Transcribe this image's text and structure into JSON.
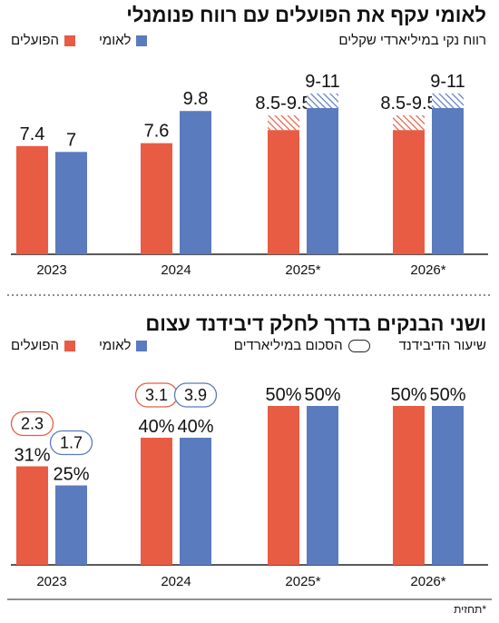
{
  "colors": {
    "hapoalim": "#e85c44",
    "leumi": "#5b7bbf",
    "baseline": "#222222",
    "divider": "#666666"
  },
  "chart_data": [
    {
      "type": "bar",
      "title": "לאומי עקף את הפועלים עם רווח פנומנלי",
      "subtitle": "רווח נקי במיליארדי שקלים",
      "categories": [
        "2023",
        "2024",
        "2025*",
        "2026*"
      ],
      "series": [
        {
          "name": "הפועלים",
          "values": [
            7.4,
            7.6,
            8.5,
            8.5
          ],
          "range_high": [
            null,
            null,
            9.5,
            9.5
          ],
          "value_labels": [
            "7.4",
            "7.6",
            "8.5-9.5",
            "8.5-9.5"
          ]
        },
        {
          "name": "לאומי",
          "values": [
            7,
            9.8,
            10,
            10
          ],
          "range_high": [
            null,
            null,
            11,
            11
          ],
          "value_labels": [
            "7",
            "9.8",
            "9-11",
            "9-11"
          ]
        }
      ],
      "ylim": [
        0,
        12
      ]
    },
    {
      "type": "bar",
      "title": "ושני הבנקים בדרך לחלק דיבידנד עצום",
      "legend_extra": [
        "שיעור הדיבידנד",
        "הסכום במיליארדים"
      ],
      "categories": [
        "2023",
        "2024",
        "2025*",
        "2026*"
      ],
      "series": [
        {
          "name": "הפועלים",
          "values": [
            31,
            40,
            50,
            50
          ],
          "value_labels": [
            "31%",
            "40%",
            "50%",
            "50%"
          ],
          "amounts": [
            "2.3",
            "3.1",
            null,
            null
          ]
        },
        {
          "name": "לאומי",
          "values": [
            25,
            40,
            50,
            50
          ],
          "value_labels": [
            "25%",
            "40%",
            "50%",
            "50%"
          ],
          "amounts": [
            "1.7",
            "3.9",
            null,
            null
          ]
        }
      ],
      "ylim": [
        0,
        60
      ]
    }
  ],
  "footnote": "*תחזית"
}
